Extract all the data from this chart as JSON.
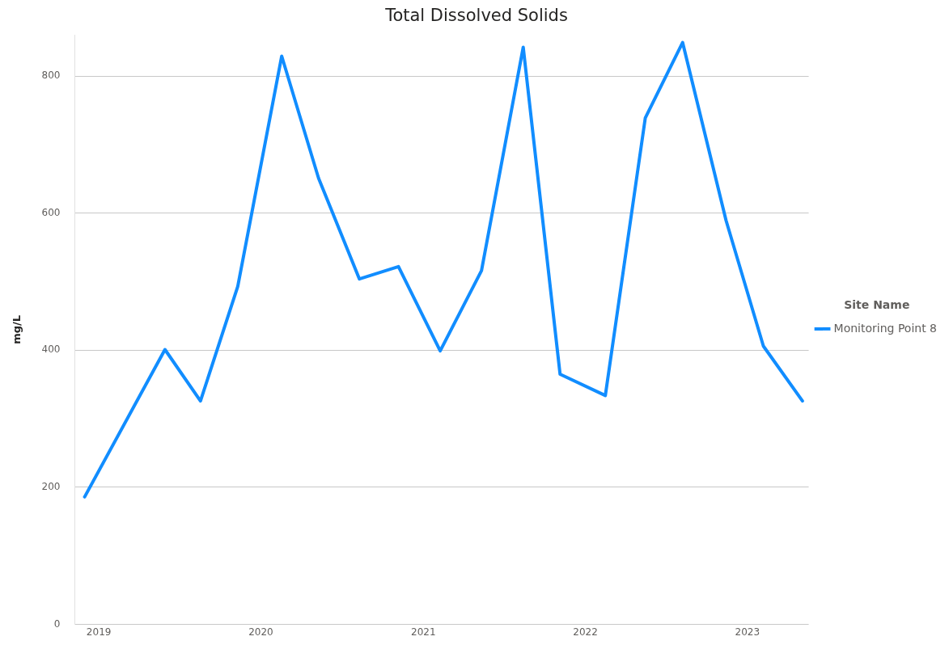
{
  "chart_data": {
    "type": "line",
    "title": "Total Dissolved Solids",
    "ylabel": "mg/L",
    "legend_title": "Site Name",
    "series": [
      {
        "name": "Monitoring Point 8",
        "color": "#118dff",
        "x": [
          "2018-11-30",
          "2019-05-30",
          "2019-08-18",
          "2019-11-10",
          "2020-02-17",
          "2020-05-10",
          "2020-08-10",
          "2020-11-06",
          "2021-02-08",
          "2021-05-12",
          "2021-08-14",
          "2021-11-05",
          "2022-02-15",
          "2022-05-16",
          "2022-08-08",
          "2022-11-14",
          "2023-02-06",
          "2023-05-05"
        ],
        "values": [
          186,
          401,
          326,
          493,
          829,
          651,
          504,
          522,
          399,
          516,
          842,
          365,
          334,
          739,
          849,
          589,
          406,
          326
        ]
      }
    ],
    "xlim": [
      "2018-11-08",
      "2023-05-19"
    ],
    "xticks": [
      "2019",
      "2020",
      "2021",
      "2022",
      "2023"
    ],
    "ylim": [
      0,
      860
    ],
    "yticks": [
      0,
      200,
      400,
      600,
      800
    ],
    "grid": "y",
    "legend": "right",
    "marker": "none",
    "line_style": "solid"
  }
}
